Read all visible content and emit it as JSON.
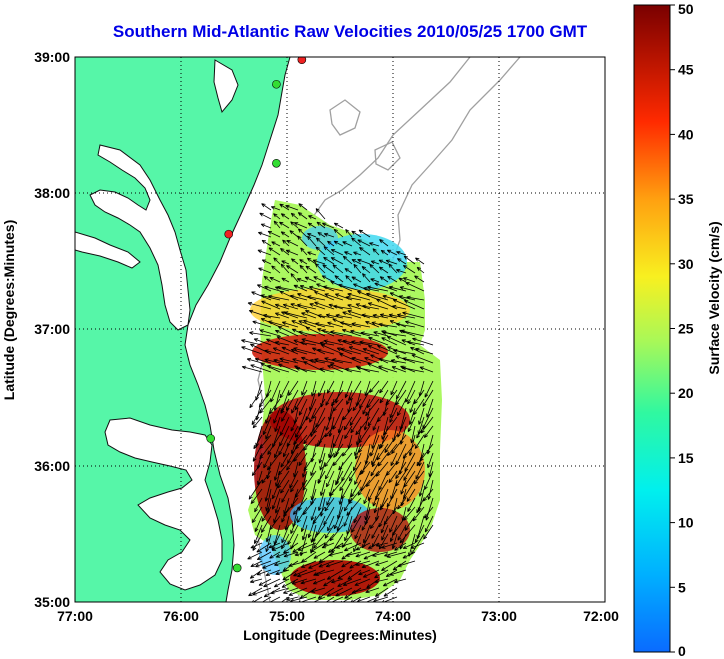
{
  "title": "Southern Mid-Atlantic Raw Velocities 2010/05/25 1700 GMT",
  "x_axis": {
    "label": "Longitude (Degrees:Minutes)",
    "ticks": [
      "77:00",
      "76:00",
      "75:00",
      "74:00",
      "73:00",
      "72:00"
    ]
  },
  "y_axis": {
    "label": "Latitude (Degrees:Minutes)",
    "ticks": [
      "39:00",
      "38:00",
      "37:00",
      "36:00",
      "35:00"
    ]
  },
  "colorbar": {
    "label": "Surface Velocity (cm/s)",
    "ticks": [
      "50",
      "45",
      "40",
      "35",
      "30",
      "25",
      "20",
      "15",
      "10",
      "5",
      "0"
    ],
    "min": 0,
    "max": 50
  },
  "colors": {
    "land": "#56f6a8",
    "title": "#0000e6",
    "station_green": "#33dd33",
    "station_red": "#ee2222"
  },
  "map_extent": {
    "lon": [
      -77,
      -72
    ],
    "lat": [
      35,
      39
    ]
  },
  "stations": [
    {
      "lon": -74.86,
      "lat": 38.98,
      "type": "red"
    },
    {
      "lon": -75.1,
      "lat": 38.8,
      "type": "green"
    },
    {
      "lon": -75.1,
      "lat": 38.22,
      "type": "green"
    },
    {
      "lon": -75.55,
      "lat": 37.7,
      "type": "red"
    },
    {
      "lon": -75.72,
      "lat": 36.2,
      "type": "green"
    },
    {
      "lon": -75.47,
      "lat": 35.25,
      "type": "green"
    }
  ]
}
